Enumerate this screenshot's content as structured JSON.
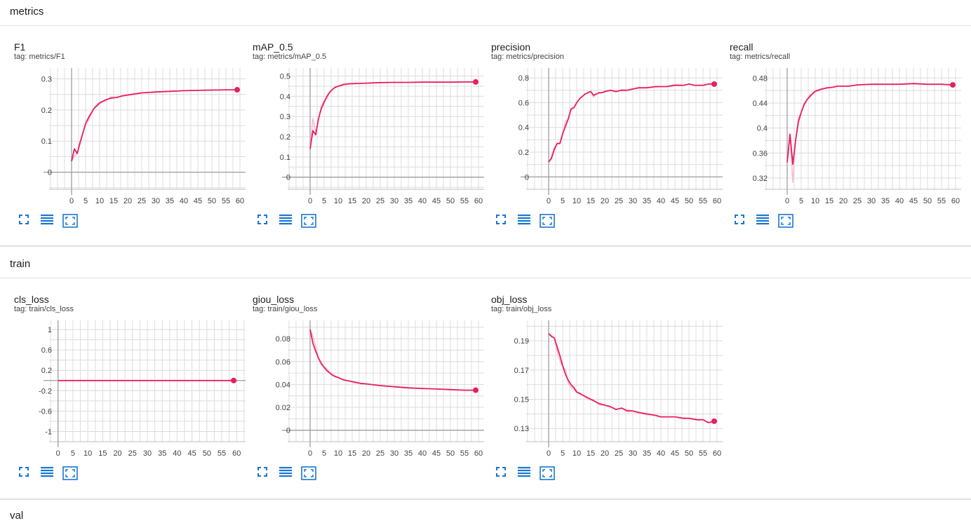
{
  "sections": [
    {
      "title": "metrics"
    },
    {
      "title": "train"
    },
    {
      "title": "val"
    }
  ],
  "colors": {
    "line": "#e91e63",
    "raw": "#f8bbd0",
    "grid": "#dcdcdc",
    "axis": "#9e9e9e",
    "icon": "#1976d2"
  },
  "icons": [
    "expand-icon",
    "lines-icon",
    "fit-domain-icon"
  ],
  "chart_data": [
    {
      "type": "line",
      "title": "F1",
      "tag": "tag: metrics/F1",
      "x_ticks": [
        0,
        5,
        10,
        15,
        20,
        25,
        30,
        35,
        40,
        45,
        50,
        55,
        60
      ],
      "y_ticks": [
        0,
        0.1,
        0.2,
        0.3
      ],
      "y_tick_labels": [
        "0",
        "0.1",
        "0.2",
        "0.3"
      ],
      "xlim": [
        -8,
        62
      ],
      "ylim": [
        -0.055,
        0.335
      ],
      "series": [
        {
          "x": [
            0,
            1,
            2,
            3,
            4,
            5,
            6,
            7,
            8,
            9,
            10,
            12,
            14,
            16,
            18,
            20,
            22,
            25,
            30,
            35,
            40,
            45,
            50,
            55,
            59
          ],
          "y": [
            0.035,
            0.075,
            0.06,
            0.095,
            0.125,
            0.155,
            0.175,
            0.19,
            0.205,
            0.213,
            0.222,
            0.232,
            0.238,
            0.24,
            0.245,
            0.248,
            0.251,
            0.255,
            0.258,
            0.26,
            0.262,
            0.263,
            0.264,
            0.265,
            0.265
          ]
        }
      ]
    },
    {
      "type": "line",
      "title": "mAP_0.5",
      "tag": "tag: metrics/mAP_0.5",
      "x_ticks": [
        0,
        5,
        10,
        15,
        20,
        25,
        30,
        35,
        40,
        45,
        50,
        55,
        60
      ],
      "y_ticks": [
        0,
        0.1,
        0.2,
        0.3,
        0.4,
        0.5
      ],
      "y_tick_labels": [
        "0",
        "0.1",
        "0.2",
        "0.3",
        "0.4",
        "0.5"
      ],
      "xlim": [
        -8,
        62
      ],
      "ylim": [
        -0.06,
        0.54
      ],
      "series": [
        {
          "x": [
            0,
            1,
            2,
            3,
            4,
            5,
            6,
            7,
            8,
            9,
            10,
            12,
            14,
            16,
            18,
            20,
            25,
            30,
            35,
            40,
            45,
            50,
            55,
            59
          ],
          "y": [
            0.14,
            0.23,
            0.21,
            0.29,
            0.34,
            0.37,
            0.4,
            0.42,
            0.435,
            0.445,
            0.45,
            0.458,
            0.462,
            0.463,
            0.464,
            0.465,
            0.468,
            0.469,
            0.469,
            0.47,
            0.47,
            0.47,
            0.471,
            0.471
          ]
        }
      ]
    },
    {
      "type": "line",
      "title": "precision",
      "tag": "tag: metrics/precision",
      "x_ticks": [
        0,
        5,
        10,
        15,
        20,
        25,
        30,
        35,
        40,
        45,
        50,
        55,
        60
      ],
      "y_ticks": [
        0,
        0.2,
        0.4,
        0.6,
        0.8
      ],
      "y_tick_labels": [
        "0",
        "0.2",
        "0.4",
        "0.6",
        "0.8"
      ],
      "xlim": [
        -8,
        62
      ],
      "ylim": [
        -0.1,
        0.88
      ],
      "series": [
        {
          "x": [
            0,
            1,
            2,
            3,
            4,
            5,
            6,
            7,
            8,
            9,
            10,
            11,
            12,
            13,
            14,
            15,
            16,
            17,
            18,
            19,
            20,
            22,
            24,
            26,
            28,
            30,
            32,
            35,
            38,
            40,
            42,
            45,
            48,
            50,
            52,
            55,
            57,
            59
          ],
          "y": [
            0.12,
            0.15,
            0.22,
            0.27,
            0.27,
            0.35,
            0.41,
            0.47,
            0.55,
            0.56,
            0.6,
            0.63,
            0.65,
            0.67,
            0.68,
            0.69,
            0.66,
            0.67,
            0.68,
            0.68,
            0.69,
            0.7,
            0.69,
            0.7,
            0.7,
            0.71,
            0.72,
            0.72,
            0.73,
            0.73,
            0.73,
            0.74,
            0.74,
            0.75,
            0.74,
            0.74,
            0.75,
            0.75
          ]
        }
      ]
    },
    {
      "type": "line",
      "title": "recall",
      "tag": "tag: metrics/recall",
      "x_ticks": [
        0,
        5,
        10,
        15,
        20,
        25,
        30,
        35,
        40,
        45,
        50,
        55,
        60
      ],
      "y_ticks": [
        0.32,
        0.36,
        0.4,
        0.44,
        0.48
      ],
      "y_tick_labels": [
        "0.32",
        "0.36",
        "0.4",
        "0.44",
        "0.48"
      ],
      "xlim": [
        -8,
        62
      ],
      "ylim": [
        0.302,
        0.496
      ],
      "series": [
        {
          "x": [
            0,
            1,
            2,
            3,
            4,
            5,
            6,
            7,
            8,
            9,
            10,
            12,
            14,
            16,
            18,
            20,
            22,
            25,
            30,
            35,
            40,
            45,
            50,
            55,
            59
          ],
          "y": [
            0.345,
            0.39,
            0.342,
            0.38,
            0.41,
            0.425,
            0.437,
            0.445,
            0.45,
            0.455,
            0.459,
            0.462,
            0.464,
            0.465,
            0.467,
            0.467,
            0.467,
            0.469,
            0.47,
            0.47,
            0.47,
            0.471,
            0.47,
            0.47,
            0.469
          ]
        }
      ]
    },
    {
      "type": "line",
      "title": "cls_loss",
      "tag": "tag: train/cls_loss",
      "x_ticks": [
        0,
        5,
        10,
        15,
        20,
        25,
        30,
        35,
        40,
        45,
        50,
        55,
        60
      ],
      "y_ticks": [
        -1,
        -0.6,
        -0.2,
        0.2,
        0.6,
        1
      ],
      "y_tick_labels": [
        "-1",
        "-0.6",
        "-0.2",
        "0.2",
        "0.6",
        "1"
      ],
      "xlim": [
        -3,
        63
      ],
      "ylim": [
        -1.2,
        1.18
      ],
      "series": [
        {
          "x": [
            0,
            59
          ],
          "y": [
            0,
            0
          ]
        }
      ]
    },
    {
      "type": "line",
      "title": "giou_loss",
      "tag": "tag: train/giou_loss",
      "x_ticks": [
        0,
        5,
        10,
        15,
        20,
        25,
        30,
        35,
        40,
        45,
        50,
        55,
        60
      ],
      "y_ticks": [
        0,
        0.02,
        0.04,
        0.06,
        0.08
      ],
      "y_tick_labels": [
        "0",
        "0.02",
        "0.04",
        "0.06",
        "0.08"
      ],
      "xlim": [
        -8,
        62
      ],
      "ylim": [
        -0.01,
        0.096
      ],
      "series": [
        {
          "x": [
            0,
            1,
            2,
            3,
            4,
            5,
            6,
            7,
            8,
            9,
            10,
            12,
            14,
            16,
            18,
            20,
            25,
            30,
            35,
            40,
            45,
            50,
            55,
            59
          ],
          "y": [
            0.088,
            0.076,
            0.069,
            0.063,
            0.058,
            0.055,
            0.052,
            0.05,
            0.048,
            0.047,
            0.046,
            0.044,
            0.043,
            0.042,
            0.041,
            0.0405,
            0.039,
            0.038,
            0.037,
            0.0365,
            0.036,
            0.0355,
            0.035,
            0.035
          ]
        }
      ]
    },
    {
      "type": "line",
      "title": "obj_loss",
      "tag": "tag: train/obj_loss",
      "x_ticks": [
        0,
        5,
        10,
        15,
        20,
        25,
        30,
        35,
        40,
        45,
        50,
        55,
        60
      ],
      "y_ticks": [
        0.13,
        0.15,
        0.17,
        0.19
      ],
      "y_tick_labels": [
        "0.13",
        "0.15",
        "0.17",
        "0.19"
      ],
      "xlim": [
        -8,
        62
      ],
      "ylim": [
        0.121,
        0.204
      ],
      "series": [
        {
          "x": [
            0,
            1,
            2,
            3,
            4,
            5,
            6,
            7,
            8,
            9,
            10,
            11,
            12,
            14,
            16,
            18,
            20,
            22,
            24,
            26,
            28,
            30,
            32,
            35,
            38,
            40,
            42,
            45,
            48,
            50,
            53,
            55,
            57,
            59
          ],
          "y": [
            0.195,
            0.193,
            0.192,
            0.186,
            0.18,
            0.173,
            0.167,
            0.163,
            0.16,
            0.158,
            0.155,
            0.154,
            0.153,
            0.151,
            0.149,
            0.147,
            0.146,
            0.145,
            0.143,
            0.144,
            0.142,
            0.142,
            0.141,
            0.14,
            0.139,
            0.138,
            0.138,
            0.138,
            0.137,
            0.137,
            0.136,
            0.136,
            0.134,
            0.135
          ]
        }
      ]
    }
  ]
}
